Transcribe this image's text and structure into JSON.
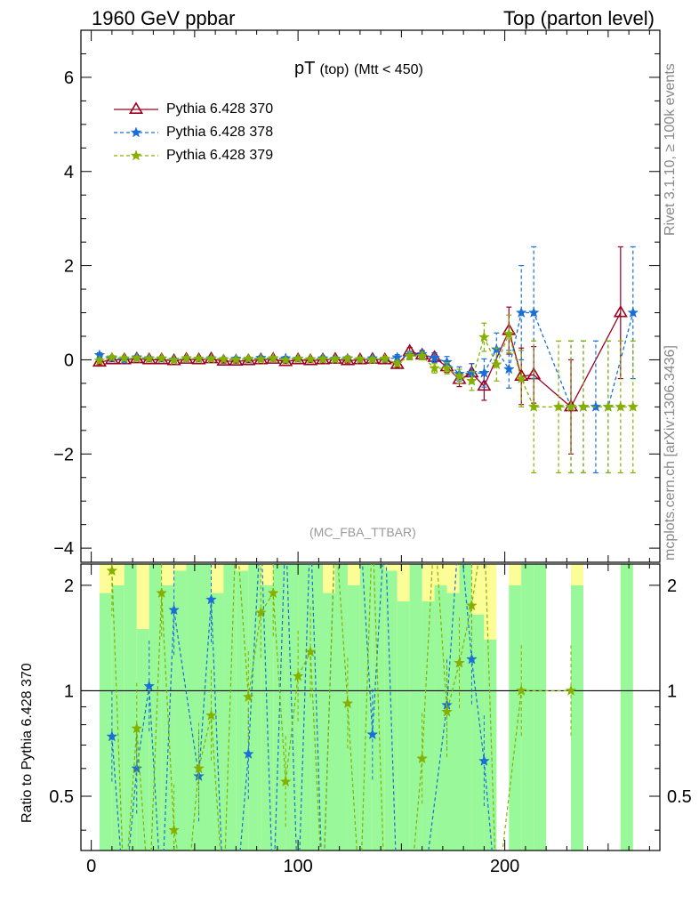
{
  "header": {
    "left": "1960 GeV ppbar",
    "right": "Top (parton level)"
  },
  "side_labels": {
    "rivet": "Rivet 3.1.10, ≥ 100k events",
    "mcplots": "mcplots.cern.ch [arXiv:1306.3436]"
  },
  "watermark": "(MC_FBA_TTBAR)",
  "ratio_ylabel": "Ratio to Pythia 6.428 370",
  "chart_data": {
    "type": "line",
    "title_main": "pT",
    "title_sub1": "(top)",
    "title_sub2": "(Mtt < 450)",
    "xlim": [
      -5,
      275
    ],
    "ylim": [
      -4.3,
      7.0
    ],
    "xticks": [
      0,
      100,
      200
    ],
    "yticks": [
      -4,
      -2,
      0,
      2,
      4,
      6
    ],
    "ratio_ylim": [
      0.35,
      2.3
    ],
    "ratio_yticks": [
      0.5,
      1,
      2
    ],
    "series": [
      {
        "name": "Pythia 6.428 370",
        "color": "#9b0020",
        "marker": "triangle",
        "dash": "",
        "x": [
          4,
          10,
          16,
          22,
          28,
          34,
          40,
          46,
          52,
          58,
          64,
          70,
          76,
          82,
          88,
          94,
          100,
          106,
          112,
          118,
          124,
          130,
          136,
          142,
          148,
          154,
          160,
          166,
          172,
          178,
          184,
          190,
          202,
          208,
          214,
          232,
          256
        ],
        "y": [
          -0.05,
          0.0,
          0.0,
          0.02,
          0.0,
          0.0,
          -0.02,
          0.01,
          0.0,
          0.02,
          -0.03,
          -0.03,
          -0.02,
          0.0,
          0.01,
          -0.04,
          0.0,
          -0.02,
          0.0,
          0.01,
          -0.02,
          0.0,
          0.01,
          0.0,
          -0.1,
          0.18,
          0.1,
          0.05,
          -0.15,
          -0.42,
          -0.28,
          -0.56,
          0.62,
          -0.35,
          -0.32,
          -1.0,
          1.0
        ],
        "err": [
          0.05,
          0.04,
          0.04,
          0.04,
          0.04,
          0.04,
          0.04,
          0.04,
          0.04,
          0.04,
          0.04,
          0.04,
          0.04,
          0.04,
          0.04,
          0.04,
          0.04,
          0.04,
          0.05,
          0.05,
          0.05,
          0.05,
          0.05,
          0.05,
          0.06,
          0.08,
          0.08,
          0.1,
          0.12,
          0.15,
          0.2,
          0.3,
          0.5,
          0.6,
          0.6,
          1.0,
          1.4
        ]
      },
      {
        "name": "Pythia 6.428 378",
        "color": "#1a6fd6",
        "marker": "star",
        "dash": "4,3",
        "x": [
          4,
          10,
          16,
          22,
          28,
          34,
          40,
          46,
          52,
          58,
          64,
          70,
          76,
          82,
          88,
          94,
          100,
          106,
          112,
          118,
          124,
          130,
          136,
          142,
          148,
          154,
          160,
          166,
          172,
          178,
          184,
          190,
          196,
          202,
          208,
          214,
          232,
          238,
          244,
          250,
          262
        ],
        "y": [
          0.1,
          0.03,
          0.0,
          0.05,
          0.03,
          0.02,
          0.0,
          0.03,
          0.02,
          0.03,
          0.01,
          0.02,
          0.01,
          0.04,
          0.03,
          0.03,
          0.02,
          0.01,
          0.03,
          0.02,
          0.03,
          0.01,
          0.03,
          0.01,
          0.05,
          0.1,
          0.12,
          0.04,
          -0.05,
          -0.3,
          -0.28,
          -0.28,
          0.22,
          -0.2,
          1.0,
          1.0,
          -1.0,
          -1.0,
          -1.0,
          -1.0,
          1.0
        ],
        "err": [
          0.05,
          0.04,
          0.04,
          0.04,
          0.04,
          0.04,
          0.04,
          0.04,
          0.04,
          0.04,
          0.04,
          0.04,
          0.04,
          0.04,
          0.04,
          0.04,
          0.04,
          0.04,
          0.05,
          0.05,
          0.05,
          0.05,
          0.05,
          0.05,
          0.06,
          0.08,
          0.08,
          0.1,
          0.12,
          0.15,
          0.2,
          0.3,
          0.35,
          0.4,
          1.0,
          1.4,
          1.4,
          1.4,
          1.4,
          1.4,
          1.4
        ]
      },
      {
        "name": "Pythia 6.428 379",
        "color": "#86b000",
        "marker": "star",
        "dash": "4,3",
        "x": [
          4,
          10,
          16,
          22,
          28,
          34,
          40,
          46,
          52,
          58,
          64,
          70,
          76,
          82,
          88,
          94,
          100,
          106,
          112,
          118,
          124,
          130,
          136,
          142,
          148,
          154,
          160,
          166,
          172,
          178,
          184,
          190,
          196,
          202,
          208,
          214,
          226,
          232,
          238,
          250,
          256,
          262
        ],
        "y": [
          -0.02,
          0.05,
          0.03,
          0.03,
          0.02,
          0.03,
          -0.01,
          0.03,
          0.02,
          0.02,
          0.01,
          0.0,
          0.02,
          0.01,
          0.03,
          -0.01,
          0.02,
          0.01,
          0.01,
          0.01,
          0.02,
          0.01,
          0.0,
          0.02,
          -0.08,
          0.08,
          0.08,
          -0.18,
          -0.18,
          -0.35,
          -0.45,
          0.48,
          -0.1,
          0.55,
          -0.4,
          -1.0,
          -1.0,
          -1.0,
          -1.0,
          -1.0,
          -1.0,
          -1.0
        ],
        "err": [
          0.05,
          0.04,
          0.04,
          0.04,
          0.04,
          0.04,
          0.04,
          0.04,
          0.04,
          0.04,
          0.04,
          0.04,
          0.04,
          0.04,
          0.04,
          0.04,
          0.04,
          0.04,
          0.05,
          0.05,
          0.05,
          0.05,
          0.05,
          0.05,
          0.06,
          0.08,
          0.08,
          0.1,
          0.12,
          0.15,
          0.2,
          0.3,
          0.35,
          0.4,
          0.6,
          1.4,
          1.4,
          1.4,
          1.4,
          1.4,
          1.4,
          1.4
        ]
      }
    ],
    "ratio_series": [
      {
        "name": "Pythia 6.428 378",
        "x": [
          10,
          16,
          22,
          28,
          34,
          40,
          52,
          58,
          64,
          70,
          76,
          82,
          88,
          94,
          100,
          106,
          112,
          118,
          124,
          130,
          136,
          142,
          148,
          160,
          172,
          178,
          184,
          190,
          196
        ],
        "y": [
          0.74,
          0.2,
          0.6,
          1.03,
          0.1,
          1.7,
          0.57,
          1.82,
          0.1,
          0.2,
          0.66,
          3.0,
          0.2,
          3.0,
          0.1,
          3.0,
          0.2,
          3.0,
          3.0,
          3.0,
          0.75,
          3.0,
          0.1,
          0.33,
          0.91,
          3.0,
          1.23,
          0.63,
          0.3
        ]
      },
      {
        "name": "Pythia 6.428 379",
        "x": [
          10,
          16,
          22,
          28,
          34,
          40,
          46,
          52,
          58,
          64,
          70,
          76,
          82,
          88,
          94,
          100,
          106,
          112,
          118,
          124,
          130,
          136,
          142,
          148,
          154,
          160,
          166,
          172,
          178,
          184,
          190,
          196,
          208,
          232
        ],
        "y": [
          2.2,
          0.2,
          0.78,
          0.1,
          1.9,
          0.4,
          0.1,
          0.6,
          0.85,
          0.1,
          3.0,
          0.96,
          1.67,
          1.9,
          0.55,
          1.1,
          1.29,
          0.1,
          3.0,
          0.92,
          0.1,
          3.0,
          0.1,
          0.1,
          0.1,
          0.64,
          3.0,
          0.87,
          1.2,
          1.75,
          3.0,
          0.1,
          1.0,
          1.0
        ]
      }
    ],
    "ratio_bands": {
      "x0": [
        4,
        10,
        16,
        22,
        28,
        34,
        40,
        46,
        52,
        58,
        64,
        70,
        76,
        82,
        88,
        94,
        100,
        106,
        112,
        118,
        124,
        130,
        136,
        142,
        148,
        154,
        160,
        166,
        172,
        178,
        184,
        190,
        202,
        208,
        214,
        232,
        256
      ],
      "x1": [
        10,
        16,
        22,
        28,
        34,
        40,
        46,
        52,
        58,
        64,
        70,
        76,
        82,
        88,
        94,
        100,
        106,
        112,
        118,
        124,
        130,
        136,
        142,
        148,
        154,
        160,
        166,
        172,
        178,
        184,
        190,
        196,
        208,
        214,
        220,
        238,
        262
      ],
      "inner": [
        1.9,
        2.0,
        2.3,
        1.5,
        2.3,
        2.0,
        2.2,
        2.3,
        2.3,
        1.9,
        2.3,
        2.2,
        2.3,
        2.0,
        2.3,
        2.3,
        2.3,
        2.3,
        1.9,
        2.3,
        2.0,
        2.3,
        2.3,
        2.2,
        1.8,
        2.3,
        1.8,
        2.0,
        1.9,
        2.3,
        1.65,
        1.4,
        2.0,
        2.3,
        2.3,
        2.0,
        2.3
      ],
      "outer": [
        2.3,
        2.3,
        2.3,
        2.3,
        2.3,
        2.3,
        2.3,
        2.3,
        2.3,
        2.3,
        2.3,
        2.3,
        2.3,
        2.3,
        2.3,
        2.3,
        2.3,
        2.3,
        2.3,
        2.3,
        2.3,
        2.3,
        2.3,
        2.3,
        2.3,
        2.3,
        2.3,
        2.3,
        2.3,
        2.3,
        2.3,
        2.3,
        2.3,
        2.3,
        2.3,
        2.3,
        2.3
      ],
      "colors": {
        "inner": "#99f899",
        "outer": "#fdfd98"
      }
    }
  }
}
